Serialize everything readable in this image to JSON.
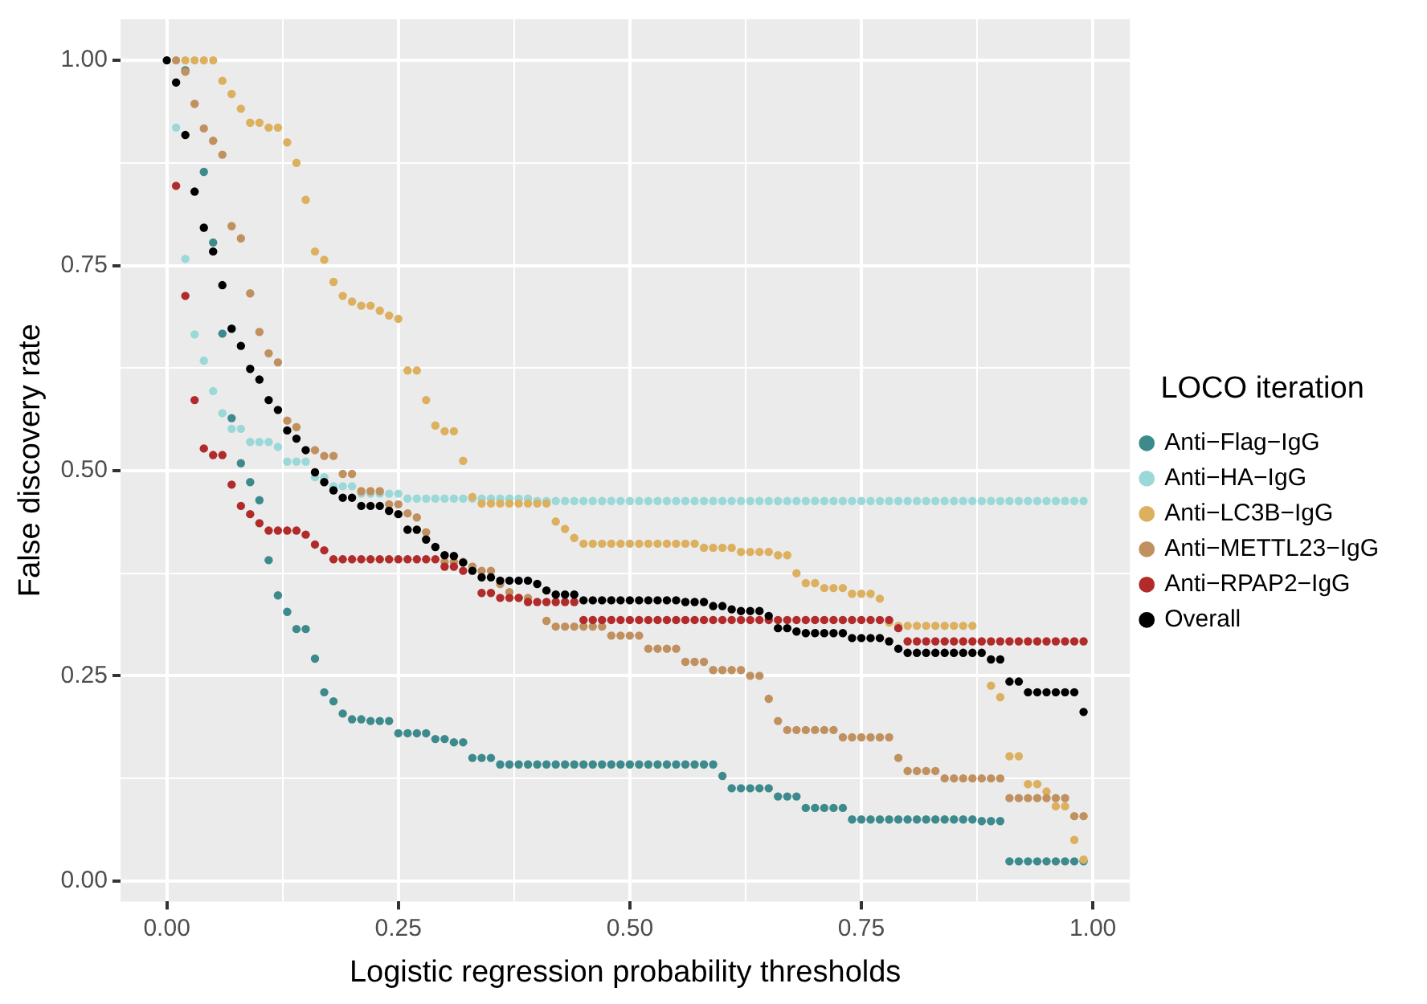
{
  "chart_data": {
    "type": "scatter",
    "xlabel": "Logistic regression probability thresholds",
    "ylabel": "False discovery rate",
    "legend_title": "LOCO iteration",
    "legend": "right",
    "grid": true,
    "marker": "circle",
    "xlim": [
      -0.05,
      1.04
    ],
    "ylim": [
      -0.025,
      1.05
    ],
    "xticks": [
      {
        "value": 0,
        "label": "0.00"
      },
      {
        "value": 0.125,
        "label": null
      },
      {
        "value": 0.25,
        "label": "0.25"
      },
      {
        "value": 0.375,
        "label": null
      },
      {
        "value": 0.5,
        "label": "0.50"
      },
      {
        "value": 0.625,
        "label": null
      },
      {
        "value": 0.75,
        "label": "0.75"
      },
      {
        "value": 0.875,
        "label": null
      },
      {
        "value": 1,
        "label": "1.00"
      }
    ],
    "yticks": [
      {
        "value": 0,
        "label": "0.00"
      },
      {
        "value": 0.125,
        "label": null
      },
      {
        "value": 0.25,
        "label": "0.25"
      },
      {
        "value": 0.375,
        "label": null
      },
      {
        "value": 0.5,
        "label": "0.50"
      },
      {
        "value": 0.625,
        "label": null
      },
      {
        "value": 0.75,
        "label": "0.75"
      },
      {
        "value": 0.875,
        "label": null
      },
      {
        "value": 1,
        "label": "1.00"
      }
    ],
    "x": [
      0,
      0.01,
      0.02,
      0.03,
      0.04,
      0.05,
      0.06,
      0.07,
      0.08,
      0.09,
      0.1,
      0.11,
      0.12,
      0.13,
      0.14,
      0.15,
      0.16,
      0.17,
      0.18,
      0.19,
      0.2,
      0.21,
      0.22,
      0.23,
      0.24,
      0.25,
      0.26,
      0.27,
      0.28,
      0.29,
      0.3,
      0.31,
      0.32,
      0.33,
      0.34,
      0.35,
      0.36,
      0.37,
      0.38,
      0.39,
      0.4,
      0.41,
      0.42,
      0.43,
      0.44,
      0.45,
      0.46,
      0.47,
      0.48,
      0.49,
      0.5,
      0.51,
      0.52,
      0.53,
      0.54,
      0.55,
      0.56,
      0.57,
      0.58,
      0.59,
      0.6,
      0.61,
      0.62,
      0.63,
      0.64,
      0.65,
      0.66,
      0.67,
      0.68,
      0.69,
      0.7,
      0.71,
      0.72,
      0.73,
      0.74,
      0.75,
      0.76,
      0.77,
      0.78,
      0.79,
      0.8,
      0.81,
      0.82,
      0.83,
      0.84,
      0.85,
      0.86,
      0.87,
      0.88,
      0.89,
      0.9,
      0.91,
      0.92,
      0.93,
      0.94,
      0.95,
      0.96,
      0.97,
      0.98,
      0.99
    ],
    "series": [
      {
        "name": "Anti−Flag−IgG",
        "color": "#3d8a8d",
        "values": [
          null,
          null,
          0.988,
          null,
          0.864,
          0.778,
          0.667,
          0.564,
          0.509,
          0.486,
          0.464,
          0.391,
          0.348,
          0.328,
          0.307,
          0.307,
          0.271,
          0.23,
          0.219,
          0.204,
          0.197,
          0.197,
          0.195,
          0.195,
          0.195,
          0.18,
          0.18,
          0.18,
          0.18,
          0.173,
          0.173,
          0.169,
          0.169,
          0.15,
          0.15,
          0.15,
          0.142,
          0.142,
          0.142,
          0.142,
          0.142,
          0.142,
          0.142,
          0.142,
          0.142,
          0.142,
          0.142,
          0.142,
          0.142,
          0.142,
          0.142,
          0.142,
          0.142,
          0.142,
          0.142,
          0.142,
          0.142,
          0.142,
          0.142,
          0.142,
          0.128,
          0.113,
          0.113,
          0.113,
          0.113,
          0.113,
          0.103,
          0.103,
          0.103,
          0.089,
          0.089,
          0.089,
          0.089,
          0.089,
          0.075,
          0.075,
          0.075,
          0.075,
          0.075,
          0.075,
          0.075,
          0.075,
          0.075,
          0.075,
          0.075,
          0.075,
          0.075,
          0.075,
          0.073,
          0.073,
          0.073,
          0.024,
          0.024,
          0.024,
          0.024,
          0.024,
          0.024,
          0.024,
          0.024,
          0.024
        ]
      },
      {
        "name": "Anti−HA−IgG",
        "color": "#9bd8d8",
        "values": [
          null,
          0.918,
          0.758,
          0.666,
          0.634,
          0.597,
          0.57,
          0.551,
          0.551,
          0.535,
          0.535,
          0.535,
          0.529,
          0.511,
          0.511,
          0.511,
          0.492,
          0.492,
          0.481,
          0.481,
          0.481,
          0.472,
          0.472,
          0.472,
          0.472,
          0.472,
          0.466,
          0.466,
          0.466,
          0.466,
          0.466,
          0.466,
          0.466,
          0.466,
          0.466,
          0.466,
          0.466,
          0.466,
          0.466,
          0.466,
          0.463,
          0.463,
          0.463,
          0.463,
          0.463,
          0.463,
          0.463,
          0.463,
          0.463,
          0.463,
          0.463,
          0.463,
          0.463,
          0.463,
          0.463,
          0.463,
          0.463,
          0.463,
          0.463,
          0.463,
          0.463,
          0.463,
          0.463,
          0.463,
          0.463,
          0.463,
          0.463,
          0.463,
          0.463,
          0.463,
          0.463,
          0.463,
          0.463,
          0.463,
          0.463,
          0.463,
          0.463,
          0.463,
          0.463,
          0.463,
          0.463,
          0.463,
          0.463,
          0.463,
          0.463,
          0.463,
          0.463,
          0.463,
          0.463,
          0.463,
          0.463,
          0.463,
          0.463,
          0.463,
          0.463,
          0.463,
          0.463,
          0.463,
          0.463,
          0.463
        ]
      },
      {
        "name": "Anti−LC3B−IgG",
        "color": "#dcb05e",
        "values": [
          null,
          null,
          1.0,
          1.0,
          1.0,
          1.0,
          0.975,
          0.959,
          0.941,
          0.924,
          0.924,
          0.918,
          0.918,
          0.9,
          0.875,
          0.83,
          0.767,
          0.757,
          0.73,
          0.713,
          0.706,
          0.701,
          0.701,
          0.695,
          0.689,
          0.685,
          0.622,
          0.622,
          0.586,
          0.555,
          0.548,
          0.548,
          0.512,
          0.468,
          0.46,
          0.46,
          0.46,
          0.46,
          0.46,
          0.46,
          0.46,
          0.46,
          0.438,
          0.429,
          0.418,
          0.411,
          0.411,
          0.411,
          0.411,
          0.411,
          0.411,
          0.411,
          0.411,
          0.411,
          0.411,
          0.411,
          0.411,
          0.411,
          0.406,
          0.406,
          0.406,
          0.406,
          0.401,
          0.401,
          0.401,
          0.401,
          0.397,
          0.397,
          0.375,
          0.363,
          0.363,
          0.357,
          0.357,
          0.357,
          0.35,
          0.35,
          0.35,
          0.344,
          0.315,
          0.311,
          0.311,
          0.311,
          0.311,
          0.311,
          0.311,
          0.311,
          0.311,
          0.311,
          null,
          0.238,
          0.224,
          0.152,
          0.152,
          0.118,
          0.118,
          0.109,
          0.091,
          0.091,
          0.05,
          0.026
        ]
      },
      {
        "name": "Anti−METTL23−IgG",
        "color": "#c0905f",
        "values": [
          null,
          1.0,
          0.986,
          0.947,
          0.917,
          0.902,
          0.885,
          0.798,
          0.783,
          0.716,
          0.669,
          0.643,
          0.632,
          0.561,
          0.553,
          null,
          0.525,
          0.518,
          0.518,
          0.496,
          0.496,
          0.475,
          0.475,
          0.475,
          0.459,
          0.459,
          0.448,
          0.443,
          0.425,
          null,
          0.389,
          0.389,
          0.389,
          0.383,
          0.378,
          0.378,
          0.362,
          0.352,
          0.345,
          0.345,
          null,
          0.317,
          0.31,
          0.31,
          0.31,
          0.31,
          0.31,
          0.31,
          0.299,
          0.299,
          0.299,
          0.299,
          0.283,
          0.283,
          0.283,
          0.283,
          0.267,
          0.267,
          0.267,
          0.257,
          0.257,
          0.257,
          0.257,
          0.25,
          0.25,
          0.222,
          0.195,
          0.184,
          0.184,
          0.184,
          0.184,
          0.184,
          0.184,
          0.175,
          0.175,
          0.175,
          0.175,
          0.175,
          0.175,
          0.15,
          0.134,
          0.134,
          0.134,
          0.134,
          0.125,
          0.125,
          0.125,
          0.125,
          0.125,
          0.125,
          0.125,
          0.101,
          0.101,
          0.101,
          0.101,
          0.101,
          0.101,
          0.101,
          0.079,
          0.079
        ]
      },
      {
        "name": "Anti−RPAP2−IgG",
        "color": "#b22b2b",
        "values": [
          null,
          0.847,
          0.713,
          0.586,
          0.527,
          0.519,
          0.519,
          0.483,
          0.457,
          0.447,
          0.436,
          0.427,
          0.427,
          0.427,
          0.427,
          0.422,
          0.41,
          0.403,
          0.392,
          0.392,
          0.392,
          0.392,
          0.392,
          0.392,
          0.392,
          0.392,
          0.392,
          0.392,
          0.392,
          0.392,
          0.383,
          0.383,
          0.378,
          null,
          0.351,
          0.351,
          0.345,
          0.345,
          0.345,
          0.34,
          0.34,
          0.34,
          0.34,
          0.34,
          0.34,
          0.318,
          0.318,
          0.318,
          0.318,
          0.318,
          0.318,
          0.318,
          0.318,
          0.318,
          0.318,
          0.318,
          0.318,
          0.318,
          0.318,
          0.318,
          0.318,
          0.318,
          0.318,
          0.318,
          0.318,
          0.318,
          0.318,
          0.318,
          0.318,
          0.318,
          0.318,
          0.318,
          0.318,
          0.318,
          0.318,
          0.318,
          0.318,
          0.318,
          0.318,
          0.308,
          0.292,
          0.292,
          0.292,
          0.292,
          0.292,
          0.292,
          0.292,
          0.292,
          0.292,
          0.292,
          0.292,
          0.292,
          0.292,
          0.292,
          0.292,
          0.292,
          0.292,
          0.292,
          0.292,
          0.292
        ]
      },
      {
        "name": "Overall",
        "color": "#000000",
        "values": [
          1.0,
          0.973,
          0.909,
          0.84,
          0.796,
          0.767,
          0.726,
          0.673,
          0.652,
          0.624,
          0.611,
          0.586,
          0.574,
          0.549,
          0.539,
          0.525,
          0.498,
          0.486,
          0.476,
          0.467,
          0.467,
          0.457,
          0.457,
          0.457,
          0.451,
          0.447,
          0.428,
          0.428,
          0.416,
          0.407,
          0.397,
          0.396,
          0.388,
          0.378,
          0.37,
          0.37,
          0.366,
          0.366,
          0.366,
          0.366,
          0.362,
          0.354,
          0.349,
          0.349,
          0.349,
          0.342,
          0.342,
          0.342,
          0.342,
          0.342,
          0.342,
          0.342,
          0.342,
          0.342,
          0.342,
          0.342,
          0.34,
          0.34,
          0.34,
          0.335,
          0.335,
          0.331,
          0.329,
          0.329,
          0.329,
          0.323,
          0.308,
          0.308,
          0.304,
          0.302,
          0.302,
          0.302,
          0.302,
          0.302,
          0.296,
          0.296,
          0.296,
          0.296,
          0.292,
          0.283,
          0.278,
          0.278,
          0.278,
          0.278,
          0.278,
          0.278,
          0.278,
          0.278,
          0.278,
          0.27,
          0.27,
          0.243,
          0.243,
          0.23,
          0.23,
          0.23,
          0.23,
          0.23,
          0.23,
          0.206
        ]
      }
    ]
  }
}
